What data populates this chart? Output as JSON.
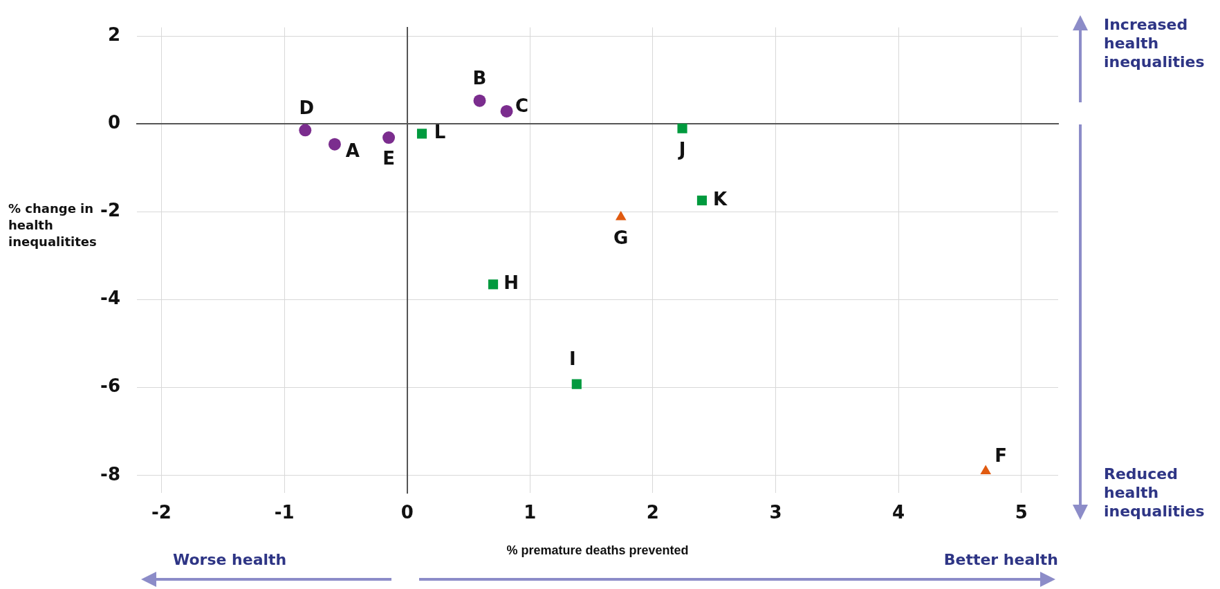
{
  "chart_data": {
    "type": "scatter",
    "xlabel": "% premature deaths prevented",
    "ylabel": "% change in health inequalitites",
    "xlim": [
      -2.2,
      5.3
    ],
    "xticks": [
      -2,
      -1,
      0,
      1,
      2,
      3,
      4,
      5
    ],
    "ylim": [
      -8.4,
      2.2
    ],
    "yticks": [
      -8,
      -6,
      -4,
      -2,
      0,
      2
    ],
    "grid": true,
    "legend": false,
    "series": [
      {
        "color": "#7b2d8e",
        "marker": "circle",
        "x": [
          -0.59,
          0.59,
          0.81,
          -0.83,
          -0.15
        ],
        "values": [
          -0.46,
          0.53,
          0.29,
          -0.14,
          -0.31
        ]
      },
      {
        "color": "#009a3e",
        "marker": "square",
        "x": [
          0.7,
          1.38,
          2.24,
          2.4,
          0.12
        ],
        "values": [
          -3.65,
          -5.92,
          -0.1,
          -1.74,
          -0.22
        ]
      },
      {
        "color": "#e05a10",
        "marker": "triangle",
        "x": [
          4.71,
          1.74
        ],
        "values": [
          -7.9,
          -2.12
        ]
      }
    ],
    "annotations": [
      {
        "text": "A",
        "x": -0.59,
        "y": -0.46
      },
      {
        "text": "B",
        "x": 0.59,
        "y": 0.53
      },
      {
        "text": "C",
        "x": 0.81,
        "y": 0.29
      },
      {
        "text": "D",
        "x": -0.83,
        "y": -0.14
      },
      {
        "text": "E",
        "x": -0.15,
        "y": -0.31
      },
      {
        "text": "F",
        "x": 4.71,
        "y": -7.9
      },
      {
        "text": "G",
        "x": 1.74,
        "y": -2.12
      },
      {
        "text": "H",
        "x": 0.7,
        "y": -3.65
      },
      {
        "text": "I",
        "x": 1.38,
        "y": -5.92
      },
      {
        "text": "J",
        "x": 2.24,
        "y": -0.1
      },
      {
        "text": "K",
        "x": 2.4,
        "y": -1.74
      },
      {
        "text": "L",
        "x": 0.12,
        "y": -0.22
      },
      "Worse health",
      "Better health",
      "Increased health inequalities",
      "Reduced health inequalities"
    ]
  }
}
